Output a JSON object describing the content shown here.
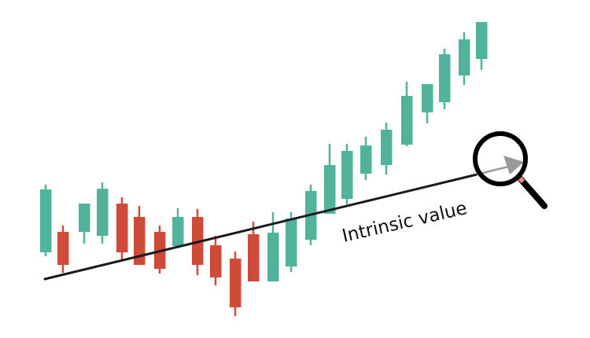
{
  "label": "Intrinsic value",
  "colors": {
    "up": "#52b39c",
    "down": "#d04a3a",
    "trend_line": "#1a1a1a",
    "arrow": "#999999",
    "magnifier": "#000000"
  },
  "icons": [
    "magnifier-icon",
    "arrow-icon"
  ],
  "candles": [
    {
      "dir": "up"
    },
    {
      "dir": "down"
    },
    {
      "dir": "up"
    },
    {
      "dir": "up"
    },
    {
      "dir": "down"
    },
    {
      "dir": "down"
    },
    {
      "dir": "down"
    },
    {
      "dir": "up"
    },
    {
      "dir": "down"
    },
    {
      "dir": "down"
    },
    {
      "dir": "down"
    },
    {
      "dir": "down"
    },
    {
      "dir": "up"
    },
    {
      "dir": "up"
    },
    {
      "dir": "up"
    },
    {
      "dir": "up"
    },
    {
      "dir": "up"
    },
    {
      "dir": "up"
    },
    {
      "dir": "up"
    },
    {
      "dir": "up"
    },
    {
      "dir": "up"
    },
    {
      "dir": "up"
    },
    {
      "dir": "up"
    },
    {
      "dir": "up"
    }
  ]
}
